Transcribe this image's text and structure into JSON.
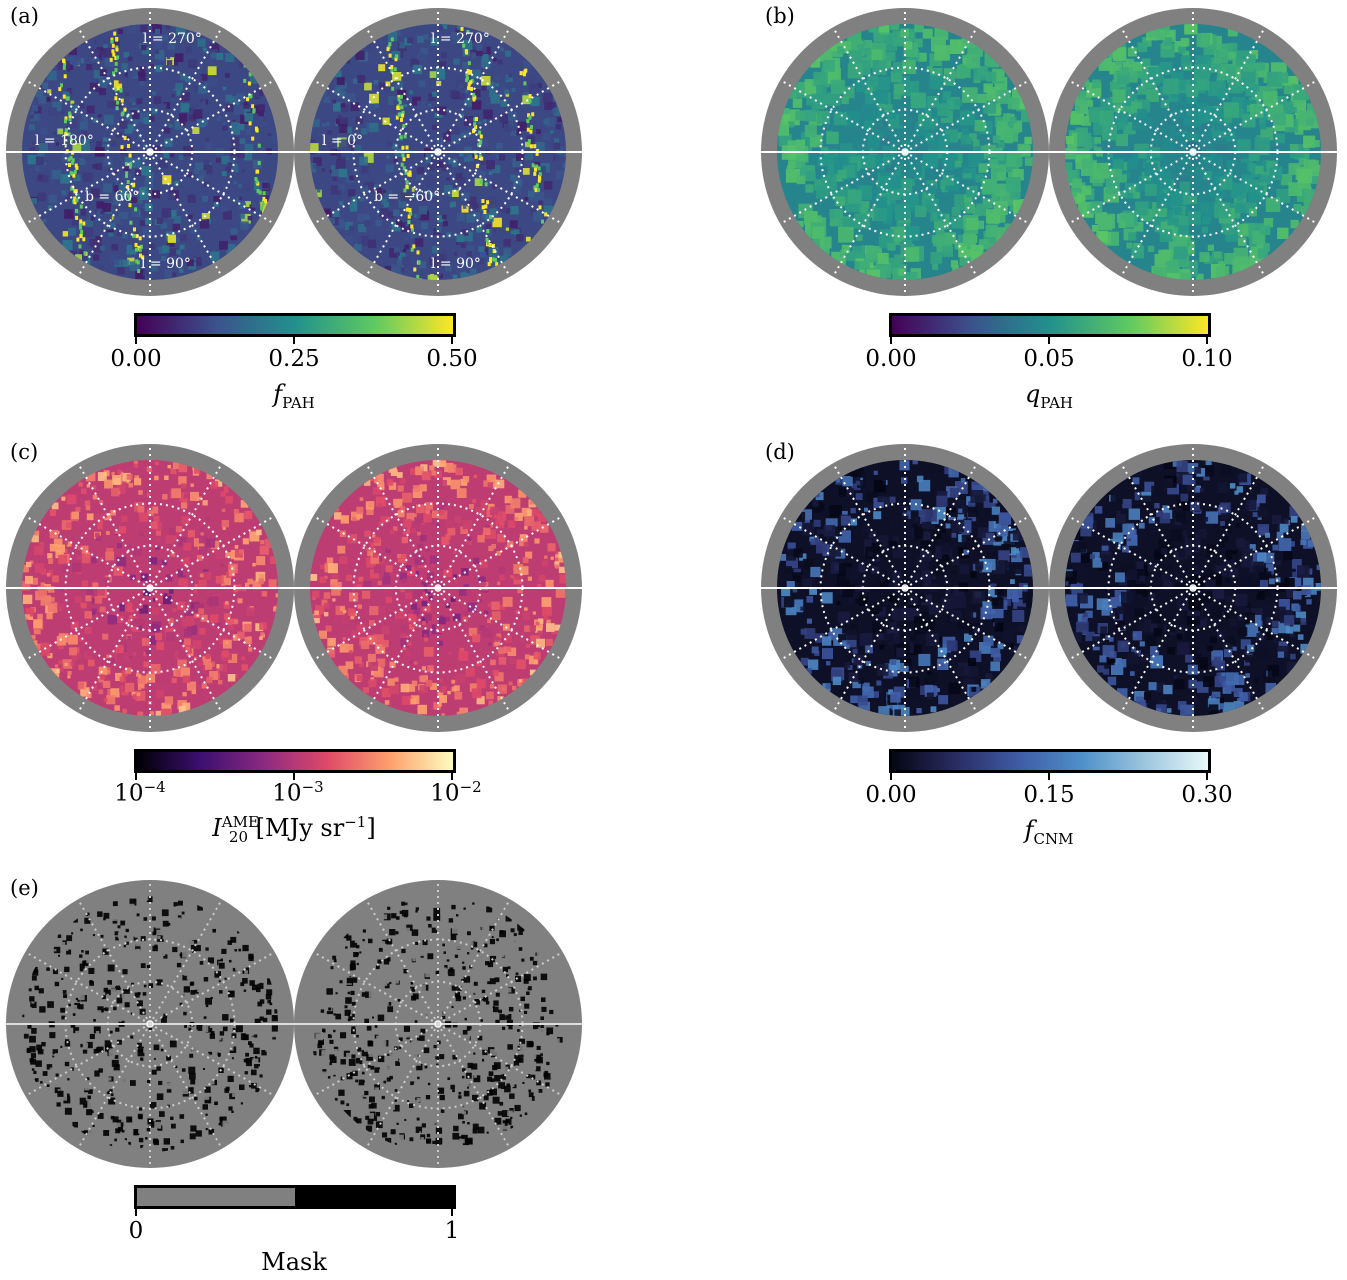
{
  "panels": [
    {
      "id": "a",
      "label": "(a)",
      "cmap": "viridis",
      "colorbar": {
        "ticks": [
          "0.00",
          "0.25",
          "0.50"
        ],
        "title": "f",
        "title_sub": "PAH"
      },
      "grid_labels": {
        "left": [
          "l = 270°",
          "l = 180°",
          "b = 60°",
          "l = 90°"
        ],
        "right": [
          "l = 270°",
          "l = 0°",
          "b = −60°",
          "l = 90°"
        ]
      }
    },
    {
      "id": "b",
      "label": "(b)",
      "cmap": "viridis",
      "colorbar": {
        "ticks": [
          "0.00",
          "0.05",
          "0.10"
        ],
        "title": "q",
        "title_sub": "PAH"
      }
    },
    {
      "id": "c",
      "label": "(c)",
      "cmap": "magma",
      "colorbar": {
        "ticks_base": [
          "10",
          "10",
          "10"
        ],
        "ticks_exp": [
          "−4",
          "−3",
          "−2"
        ],
        "title": "I",
        "title_sub": "20",
        "title_sup": "AME",
        "title_unit": "[MJy sr",
        "title_unit_exp": "−1",
        "title_unit_close": "]"
      }
    },
    {
      "id": "d",
      "label": "(d)",
      "cmap": "ice",
      "colorbar": {
        "ticks": [
          "0.00",
          "0.15",
          "0.30"
        ],
        "title": "f",
        "title_sub": "CNM"
      }
    },
    {
      "id": "e",
      "label": "(e)",
      "cmap": "mask",
      "colorbar": {
        "ticks": [
          "0",
          "1"
        ],
        "title": "Mask"
      }
    }
  ],
  "colors": {
    "viridis": [
      "#440154",
      "#3b528b",
      "#21918c",
      "#5ec962",
      "#fde725"
    ],
    "magma": [
      "#000004",
      "#3b0f70",
      "#8c2981",
      "#de4968",
      "#fe9f6d",
      "#fcfdbf"
    ],
    "ice": [
      "#040613",
      "#292c62",
      "#3f5ba6",
      "#4e8fc9",
      "#9cc6dd",
      "#eaf8fa"
    ],
    "mask": [
      "#808080",
      "#000000"
    ],
    "ring": "#808080",
    "grid": "#ffffff"
  }
}
